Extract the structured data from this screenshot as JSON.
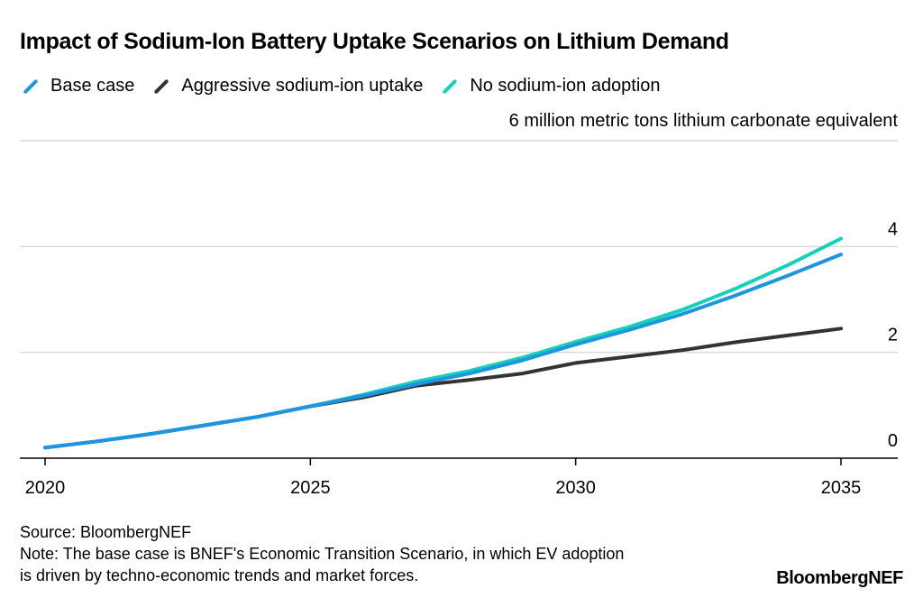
{
  "title": "Impact of Sodium-Ion Battery Uptake Scenarios on Lithium Demand",
  "unit_label": "6 million metric tons lithium carbonate equivalent",
  "legend": [
    {
      "label": "Base case",
      "color": "#1f94e0"
    },
    {
      "label": "Aggressive sodium-ion uptake",
      "color": "#333333"
    },
    {
      "label": "No sodium-ion adoption",
      "color": "#14d2b8"
    }
  ],
  "source": "Source: BloombergNEF",
  "note_line1": "Note: The base case is BNEF's Economic Transition Scenario, in which EV adoption",
  "note_line2": "is driven by techno-economic trends and market forces.",
  "brand": "BloombergNEF",
  "chart_data": {
    "type": "line",
    "title": "Impact of Sodium-Ion Battery Uptake Scenarios on Lithium Demand",
    "ylabel": "6 million metric tons lithium carbonate equivalent",
    "xlim": [
      2020,
      2035.5
    ],
    "ylim": [
      0,
      6
    ],
    "x_ticks": [
      "2020",
      "2025",
      "2030",
      "2035"
    ],
    "y_ticks": [
      "0",
      "2",
      "4"
    ],
    "grid": true,
    "legend_position": "top-left",
    "x": [
      2020,
      2021,
      2022,
      2023,
      2024,
      2025,
      2026,
      2027,
      2028,
      2029,
      2030,
      2031,
      2032,
      2033,
      2034,
      2035
    ],
    "series": [
      {
        "name": "Base case",
        "color": "#1f94e0",
        "values": [
          0.2,
          0.32,
          0.46,
          0.62,
          0.78,
          0.98,
          1.18,
          1.4,
          1.6,
          1.85,
          2.15,
          2.42,
          2.72,
          3.07,
          3.45,
          3.85
        ]
      },
      {
        "name": "Aggressive sodium-ion uptake",
        "color": "#333333",
        "values": [
          0.2,
          0.32,
          0.46,
          0.62,
          0.78,
          0.98,
          1.15,
          1.37,
          1.48,
          1.6,
          1.8,
          1.92,
          2.04,
          2.19,
          2.32,
          2.45
        ]
      },
      {
        "name": "No sodium-ion adoption",
        "color": "#14d2b8",
        "values": [
          0.2,
          0.32,
          0.46,
          0.62,
          0.78,
          0.98,
          1.2,
          1.45,
          1.65,
          1.9,
          2.2,
          2.48,
          2.8,
          3.2,
          3.65,
          4.15
        ]
      }
    ]
  }
}
